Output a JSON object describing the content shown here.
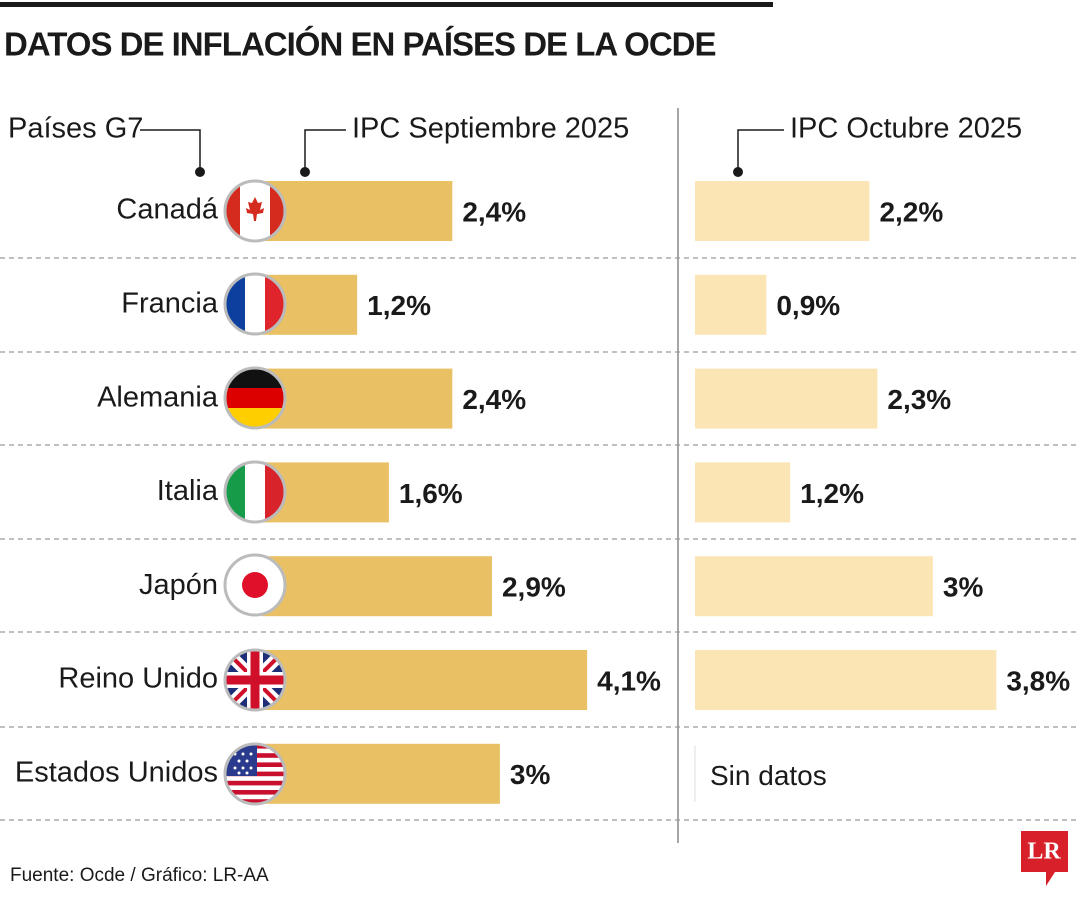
{
  "chart_data": {
    "type": "bar",
    "orientation": "horizontal",
    "title": "DATOS DE INFLACIÓN EN PAÍSES DE LA OCDE",
    "category_label": "Países G7",
    "categories": [
      "Canadá",
      "Francia",
      "Alemania",
      "Italia",
      "Japón",
      "Reino Unido",
      "Estados Unidos"
    ],
    "series": [
      {
        "name": "IPC Septiembre 2025",
        "color": "#e9c164",
        "values": [
          2.4,
          1.2,
          2.4,
          1.6,
          2.9,
          4.1,
          3
        ],
        "value_labels": [
          "2,4%",
          "1,2%",
          "2,4%",
          "1,6%",
          "2,9%",
          "4,1%",
          "3%"
        ]
      },
      {
        "name": "IPC Octubre 2025",
        "color": "#fce5b5",
        "values": [
          2.2,
          0.9,
          2.3,
          1.2,
          3,
          3.8,
          null
        ],
        "value_labels": [
          "2,2%",
          "0,9%",
          "2,3%",
          "1,2%",
          "3%",
          "3,8%",
          null
        ]
      }
    ],
    "missing_label": "Sin datos",
    "source": "Fuente: Ocde / Gráfico: LR-AA",
    "logo": "LR"
  }
}
